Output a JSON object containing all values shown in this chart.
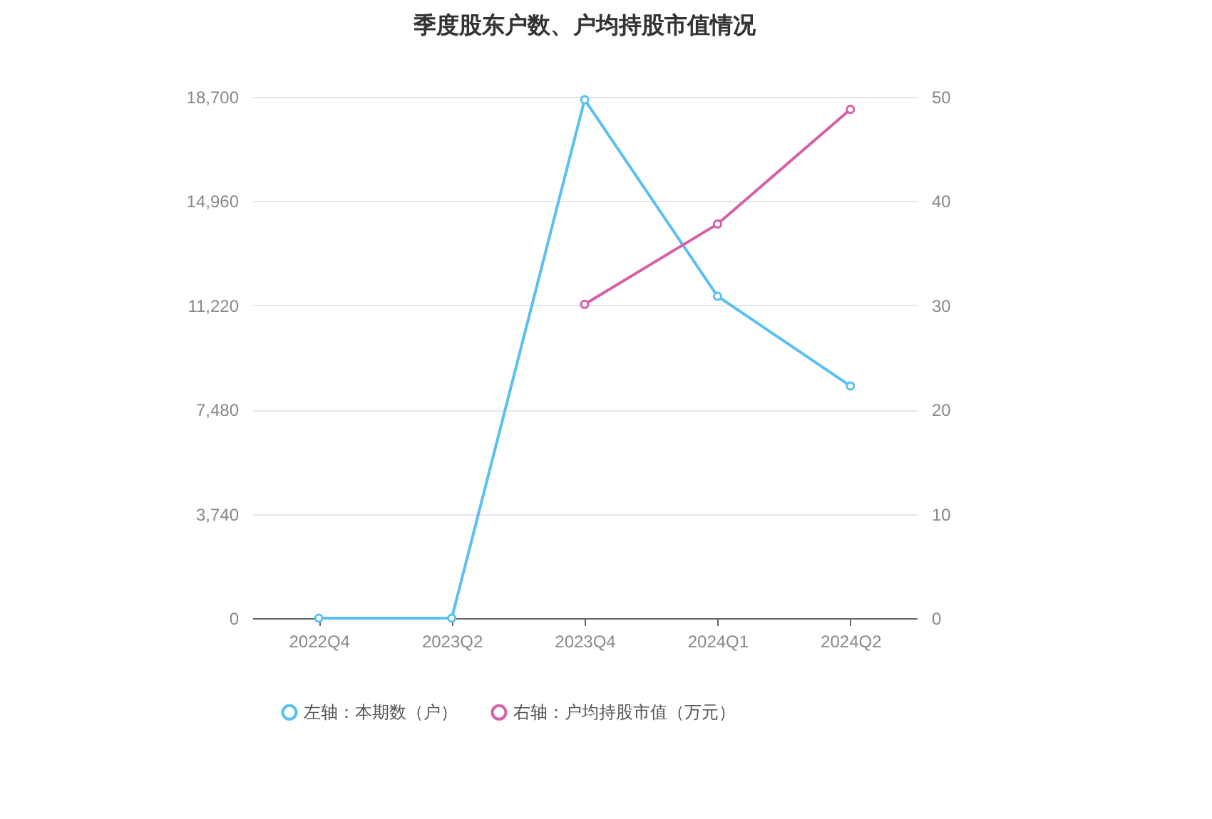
{
  "chart_data": {
    "type": "line",
    "title": "季度股东户数、户均持股市值情况",
    "categories": [
      "2022Q4",
      "2023Q2",
      "2023Q4",
      "2024Q1",
      "2024Q2"
    ],
    "series": [
      {
        "name": "左轴：本期数（户）",
        "color": "#5ac0f2",
        "values": [
          0,
          0,
          18600,
          11550,
          8330
        ]
      },
      {
        "name": "右轴：户均持股市值（万元）",
        "color": "#d560a8",
        "axis": "y2",
        "values": [
          null,
          null,
          30.1,
          37.8,
          48.8
        ]
      }
    ],
    "ylim": [
      0,
      18700
    ],
    "yticks": [
      {
        "value": 0,
        "label": "0"
      },
      {
        "value": 3740,
        "label": "3,740"
      },
      {
        "value": 7480,
        "label": "7,480"
      },
      {
        "value": 11220,
        "label": "11,220"
      },
      {
        "value": 14960,
        "label": "14,960"
      },
      {
        "value": 18700,
        "label": "18,700"
      }
    ],
    "y2lim": [
      0,
      50
    ],
    "y2ticks": [
      0,
      10,
      20,
      30,
      40,
      50
    ],
    "grid": "y",
    "legend": "bottom",
    "marker": "circle"
  }
}
